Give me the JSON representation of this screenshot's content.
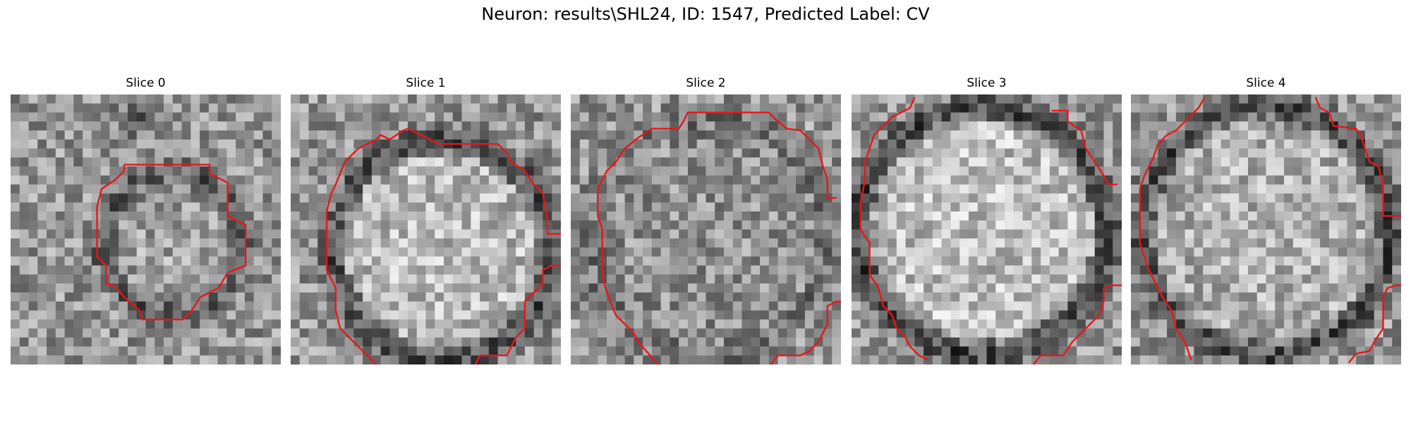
{
  "title": "Neuron: results\\SHL24, ID: 1547, Predicted Label: CV",
  "panels": [
    {
      "title": "Slice 0"
    },
    {
      "title": "Slice 1"
    },
    {
      "title": "Slice 2"
    },
    {
      "title": "Slice 3"
    },
    {
      "title": "Slice 4"
    }
  ]
}
